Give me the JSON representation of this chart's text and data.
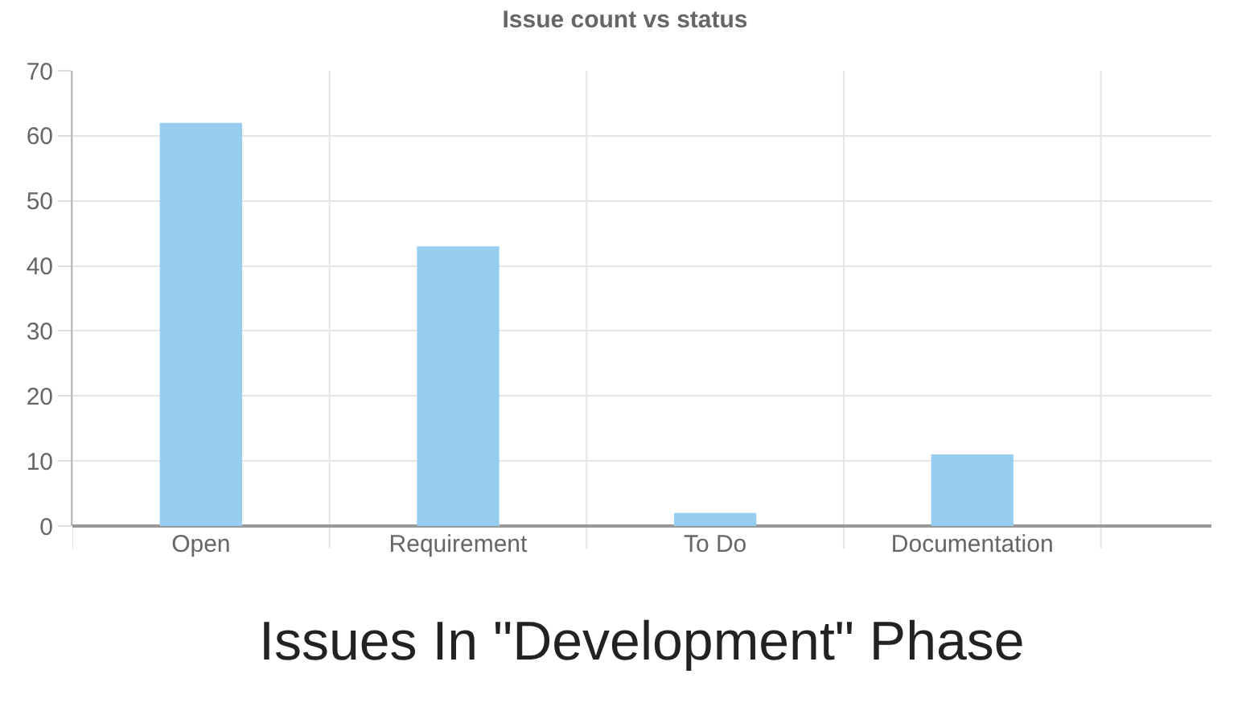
{
  "chart_data": {
    "type": "bar",
    "title": "Issue count vs status",
    "categories": [
      "Open",
      "Requirement",
      "To Do",
      "Documentation"
    ],
    "values": [
      62,
      43,
      2,
      11
    ],
    "color": "#97cdf0",
    "ylim": [
      0,
      70
    ],
    "yticks": [
      0,
      10,
      20,
      30,
      40,
      50,
      60,
      70
    ],
    "grid": true,
    "legend": false,
    "annotations": [
      "Issues In \"Development\" Phase"
    ]
  }
}
